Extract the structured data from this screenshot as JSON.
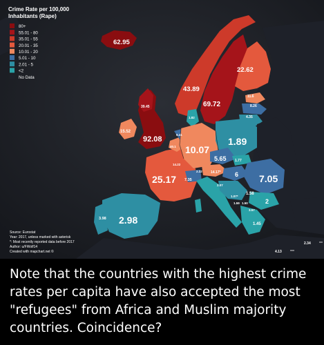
{
  "legend": {
    "title_line1": "Crime Rate per 100,000",
    "title_line2": "Inhabitants (Rape)",
    "items": [
      {
        "label": "80+",
        "color": "#8a0d10"
      },
      {
        "label": "55.01 - 80",
        "color": "#a5141a"
      },
      {
        "label": "35.01 - 55",
        "color": "#cd3a2a"
      },
      {
        "label": "20.01 - 35",
        "color": "#e4593d"
      },
      {
        "label": "10.01 - 20",
        "color": "#f0885e"
      },
      {
        "label": "5.01 - 10",
        "color": "#3d6ea3"
      },
      {
        "label": "2.01 - 5",
        "color": "#2e8fa3"
      },
      {
        "label": "<2",
        "color": "#2aa3a8"
      },
      {
        "label": "No Data",
        "color": "#1e2129"
      }
    ]
  },
  "map_labels": {
    "iceland": "62.95",
    "norway": "43.89",
    "sweden": "69.72",
    "finland": "22.62",
    "uk": "92.08",
    "ireland": "15.52",
    "scotland": "39.45",
    "germany": "10.07",
    "france": "25.17",
    "poland": "1.89",
    "czech": "5.65",
    "romania": "7.05",
    "spain": "2.98",
    "portugal": "3.98",
    "bulgaria": "2",
    "hungary": "6",
    "greece": "1.45",
    "serbia": "1.58",
    "slovakia": "1.77",
    "estonia": "11.6",
    "latvia": "8.26",
    "lithuania": "4.35",
    "belgium": "14.22",
    "luxembourg": "40.1",
    "netherlands": "9.41",
    "switzerland": "7.35",
    "austria": "14.17*",
    "slovenia": "2.07",
    "croatia": "2.32",
    "bosnia": "1.07*",
    "montenegro": "1.59",
    "macedonia": "1.50",
    "albania": "3.57",
    "denmark": "1.82",
    "malta": "2.34",
    "cyprus": "4.13"
  },
  "source": {
    "line1": "Source: Eurostat",
    "line2": "Year: 2017, unless marked with asterisk",
    "line3": "*: Most recently reported data before 2017",
    "line4": "Author: u/FWolf14",
    "line5": "Created with mapchart.net ©"
  },
  "caption": "Note that the countries with the highest crime rates per capita have also accepted the most \"refugees\" from Africa and Muslim majority countries. Coincidence?"
}
